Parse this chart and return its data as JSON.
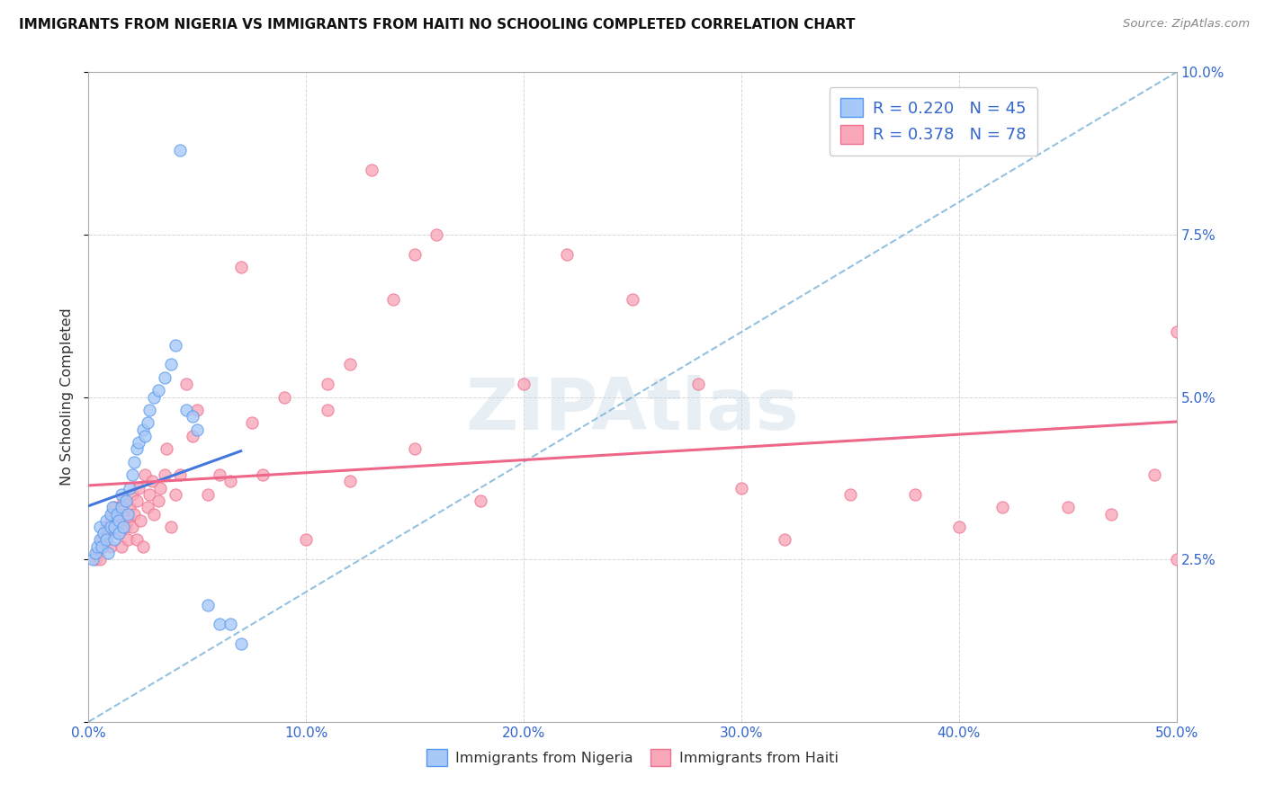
{
  "title": "IMMIGRANTS FROM NIGERIA VS IMMIGRANTS FROM HAITI NO SCHOOLING COMPLETED CORRELATION CHART",
  "source": "Source: ZipAtlas.com",
  "ylabel": "No Schooling Completed",
  "xlim": [
    0.0,
    0.5
  ],
  "ylim": [
    0.0,
    0.1
  ],
  "xticks": [
    0.0,
    0.1,
    0.2,
    0.3,
    0.4,
    0.5
  ],
  "xtick_labels": [
    "0.0%",
    "10.0%",
    "20.0%",
    "30.0%",
    "40.0%",
    "50.0%"
  ],
  "yticks": [
    0.0,
    0.025,
    0.05,
    0.075,
    0.1
  ],
  "ytick_right_labels": [
    "",
    "2.5%",
    "5.0%",
    "7.5%",
    "10.0%"
  ],
  "color_nigeria": "#a8c8f8",
  "color_haiti": "#f8a8b8",
  "color_nigeria_edge": "#5599ee",
  "color_haiti_edge": "#ee7090",
  "color_nigeria_line": "#4477dd",
  "color_haiti_line": "#ee6688",
  "color_dashed": "#88bbdd",
  "watermark": "ZIPAtlas",
  "nigeria_x": [
    0.002,
    0.003,
    0.004,
    0.005,
    0.005,
    0.006,
    0.007,
    0.008,
    0.008,
    0.009,
    0.01,
    0.01,
    0.011,
    0.012,
    0.012,
    0.013,
    0.014,
    0.014,
    0.015,
    0.015,
    0.016,
    0.017,
    0.018,
    0.019,
    0.02,
    0.021,
    0.022,
    0.023,
    0.025,
    0.026,
    0.027,
    0.028,
    0.03,
    0.032,
    0.035,
    0.038,
    0.04,
    0.042,
    0.045,
    0.048,
    0.05,
    0.055,
    0.06,
    0.065,
    0.07
  ],
  "nigeria_y": [
    0.025,
    0.026,
    0.027,
    0.028,
    0.03,
    0.027,
    0.029,
    0.031,
    0.028,
    0.026,
    0.03,
    0.032,
    0.033,
    0.028,
    0.03,
    0.032,
    0.029,
    0.031,
    0.035,
    0.033,
    0.03,
    0.034,
    0.032,
    0.036,
    0.038,
    0.04,
    0.042,
    0.043,
    0.045,
    0.044,
    0.046,
    0.048,
    0.05,
    0.051,
    0.053,
    0.055,
    0.058,
    0.088,
    0.048,
    0.047,
    0.045,
    0.018,
    0.015,
    0.015,
    0.012
  ],
  "haiti_x": [
    0.003,
    0.004,
    0.005,
    0.006,
    0.007,
    0.008,
    0.008,
    0.009,
    0.01,
    0.01,
    0.011,
    0.012,
    0.012,
    0.013,
    0.014,
    0.015,
    0.015,
    0.016,
    0.017,
    0.018,
    0.018,
    0.019,
    0.02,
    0.02,
    0.021,
    0.022,
    0.022,
    0.023,
    0.024,
    0.025,
    0.026,
    0.027,
    0.028,
    0.029,
    0.03,
    0.032,
    0.033,
    0.035,
    0.036,
    0.038,
    0.04,
    0.042,
    0.045,
    0.048,
    0.05,
    0.055,
    0.06,
    0.065,
    0.07,
    0.075,
    0.08,
    0.09,
    0.1,
    0.11,
    0.12,
    0.13,
    0.14,
    0.15,
    0.16,
    0.18,
    0.11,
    0.12,
    0.15,
    0.2,
    0.22,
    0.25,
    0.28,
    0.3,
    0.32,
    0.35,
    0.38,
    0.4,
    0.42,
    0.45,
    0.47,
    0.49,
    0.5,
    0.5
  ],
  "haiti_y": [
    0.025,
    0.026,
    0.025,
    0.028,
    0.027,
    0.03,
    0.028,
    0.029,
    0.031,
    0.027,
    0.032,
    0.03,
    0.033,
    0.031,
    0.029,
    0.027,
    0.032,
    0.034,
    0.03,
    0.028,
    0.031,
    0.033,
    0.03,
    0.035,
    0.032,
    0.028,
    0.034,
    0.036,
    0.031,
    0.027,
    0.038,
    0.033,
    0.035,
    0.037,
    0.032,
    0.034,
    0.036,
    0.038,
    0.042,
    0.03,
    0.035,
    0.038,
    0.052,
    0.044,
    0.048,
    0.035,
    0.038,
    0.037,
    0.07,
    0.046,
    0.038,
    0.05,
    0.028,
    0.048,
    0.037,
    0.085,
    0.065,
    0.072,
    0.075,
    0.034,
    0.052,
    0.055,
    0.042,
    0.052,
    0.072,
    0.065,
    0.052,
    0.036,
    0.028,
    0.035,
    0.035,
    0.03,
    0.033,
    0.033,
    0.032,
    0.038,
    0.06,
    0.025
  ],
  "legend_items": [
    {
      "label": "R = 0.220   N = 45",
      "color": "#a8c8f8",
      "edge": "#5599ee"
    },
    {
      "label": "R = 0.378   N = 78",
      "color": "#f8a8b8",
      "edge": "#ee7090"
    }
  ],
  "bottom_legend": [
    {
      "label": "Immigrants from Nigeria",
      "color": "#a8c8f8",
      "edge": "#5599ee"
    },
    {
      "label": "Immigrants from Haiti",
      "color": "#f8a8b8",
      "edge": "#ee7090"
    }
  ]
}
